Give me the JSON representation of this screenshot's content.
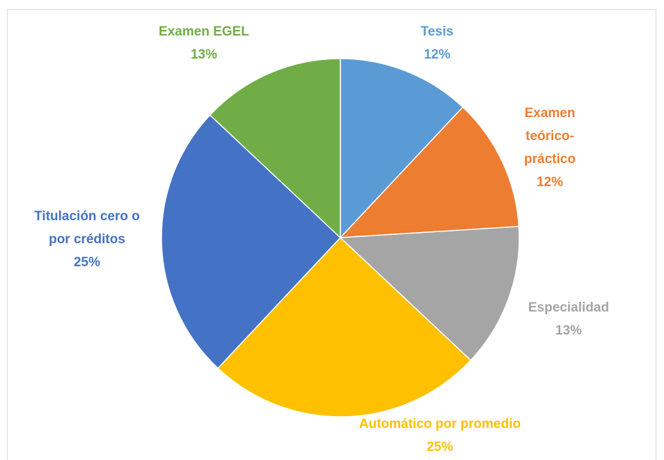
{
  "chart_data": {
    "type": "pie",
    "categories": [
      "Tesis",
      "Examen teórico-práctico",
      "Especialidad",
      "Automático por promedio",
      "Titulación cero o por créditos",
      "Examen EGEL"
    ],
    "values": [
      12,
      12,
      13,
      25,
      25,
      13
    ],
    "value_labels": [
      "12%",
      "12%",
      "13%",
      "25%",
      "25%",
      "13%"
    ],
    "colors": [
      "#5B9BD5",
      "#ED7D31",
      "#A5A5A5",
      "#FFC000",
      "#4472C4",
      "#70AD47"
    ]
  }
}
